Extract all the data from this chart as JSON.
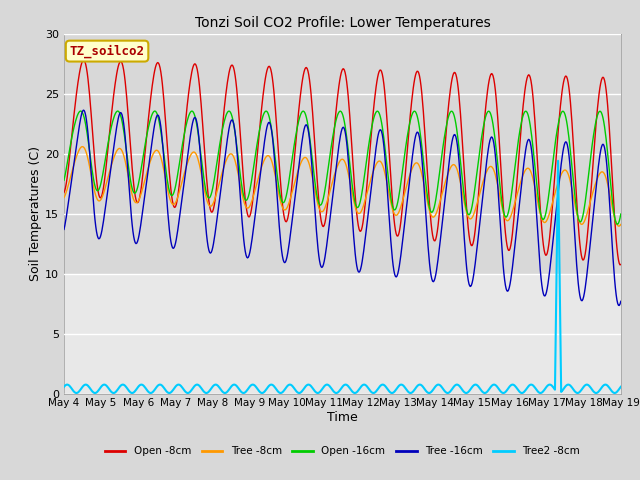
{
  "title": "Tonzi Soil CO2 Profile: Lower Temperatures",
  "xlabel": "Time",
  "ylabel": "Soil Temperatures (C)",
  "ylim": [
    0,
    30
  ],
  "yticks": [
    0,
    5,
    10,
    15,
    20,
    25,
    30
  ],
  "fig_facecolor": "#d8d8d8",
  "axes_facecolor": "#e8e8e8",
  "line_colors": [
    "#dd0000",
    "#ff9900",
    "#00cc00",
    "#0000bb",
    "#00ccff"
  ],
  "line_labels": [
    "Open -8cm",
    "Tree -8cm",
    "Open -16cm",
    "Tree -16cm",
    "Tree2 -8cm"
  ],
  "start_day": 4,
  "end_day": 19,
  "n_days": 15,
  "annotation_text": "TZ_soilco2",
  "annotation_color": "#aa0000",
  "annotation_bg": "#ffffcc",
  "annotation_edge": "#ccaa00"
}
